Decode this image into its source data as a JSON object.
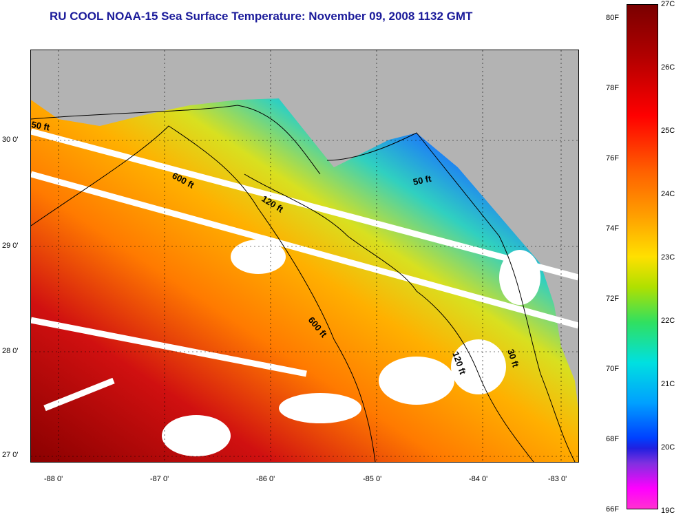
{
  "title": "RU COOL  NOAA-15  Sea Surface Temperature:  November 09, 2008 1132 GMT",
  "y_axis_labels": [
    "30 0'",
    "29 0'",
    "28 0'",
    "27 0'"
  ],
  "x_axis_labels": [
    "-88 0'",
    "-87 0'",
    "-86 0'",
    "-85 0'",
    "-84 0'",
    "-83 0'"
  ],
  "colorbar": {
    "fahrenheit_labels": [
      "80F",
      "78F",
      "76F",
      "74F",
      "72F",
      "70F",
      "68F",
      "66F"
    ],
    "celsius_labels": [
      "27C",
      "26C",
      "25C",
      "24C",
      "23C",
      "22C",
      "21C",
      "20C",
      "19C"
    ],
    "colors": {
      "hot": "#7a0000",
      "warm": "#ff6000",
      "mid": "#ffe000",
      "cool": "#00e0e0",
      "cold": "#0040ff",
      "coldest": "#ff00ff"
    }
  },
  "depth_contours": [
    "50 ft",
    "600 ft",
    "120 ft",
    "50 ft",
    "600 ft",
    "120 ft",
    "30 ft"
  ],
  "colors": {
    "land": "#b3b3b3",
    "cloud": "#ffffff",
    "title": "#1a1a9a"
  }
}
